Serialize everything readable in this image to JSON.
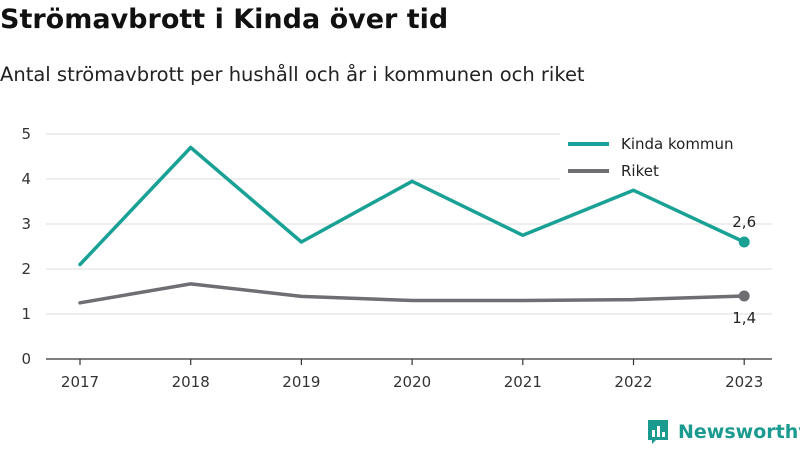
{
  "title": "Strömavbrott i Kinda över tid",
  "subtitle": "Antal strömavbrott per hushåll och år i kommunen och riket",
  "brand": "Newsworthy",
  "chart_data": {
    "type": "line",
    "x": [
      "2017",
      "2018",
      "2019",
      "2020",
      "2021",
      "2022",
      "2023"
    ],
    "ylim": [
      0,
      5
    ],
    "yticks": [
      "0",
      "1",
      "2",
      "3",
      "4",
      "5"
    ],
    "grid": true,
    "legend_position": "top-right",
    "series": [
      {
        "name": "Kinda kommun",
        "color": "#1aa195",
        "values": [
          2.1,
          4.7,
          2.6,
          3.95,
          2.75,
          3.75,
          2.6
        ],
        "end_label": "2,6"
      },
      {
        "name": "Riket",
        "color": "#6e6e73",
        "values": [
          1.25,
          1.67,
          1.39,
          1.3,
          1.3,
          1.32,
          1.4
        ],
        "end_label": "1,4"
      }
    ]
  }
}
